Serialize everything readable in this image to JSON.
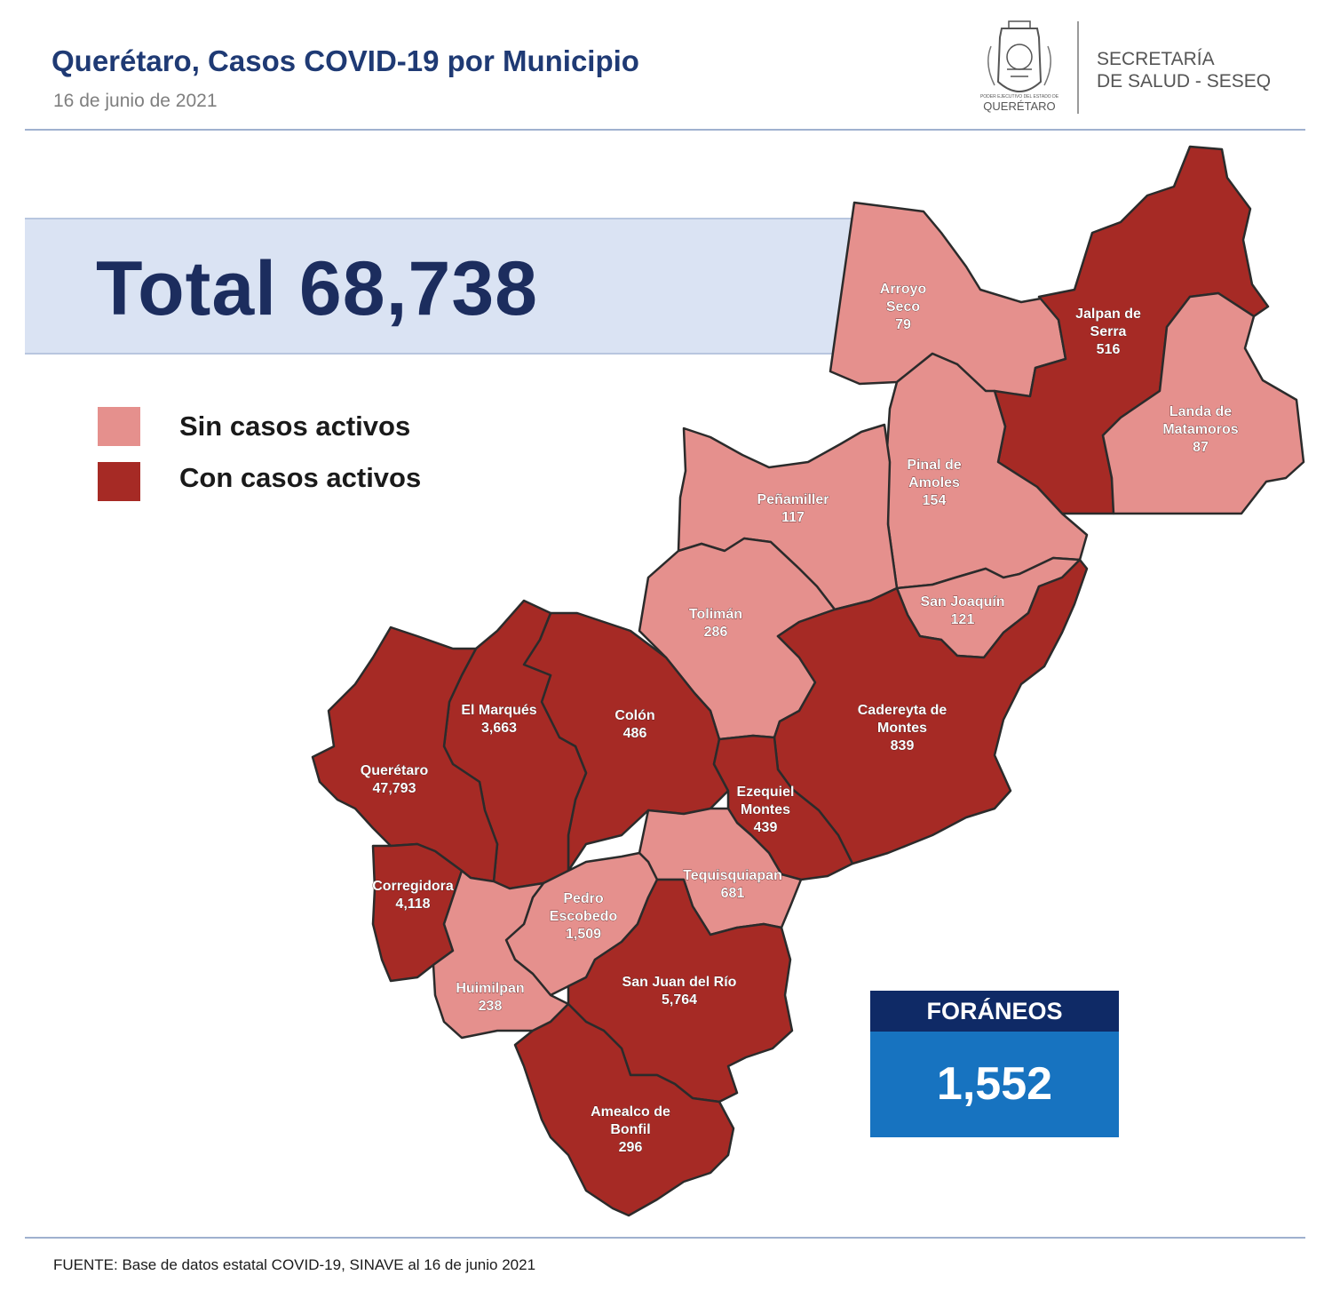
{
  "header": {
    "title": "Querétaro, Casos COVID-19 por Municipio",
    "date": "16 de junio  de 2021",
    "seal_caption": "QUERÉTARO",
    "seal_small": "PODER EJECUTIVO DEL ESTADO DE",
    "secretaria_line1": "SECRETARÍA",
    "secretaria_line2": "DE SALUD - SESEQ"
  },
  "total": "Total 68,738",
  "legend": [
    {
      "label": "Sin casos activos",
      "color": "#e5908d"
    },
    {
      "label": "Con casos activos",
      "color": "#a62a25"
    }
  ],
  "colors": {
    "inactive": "#e5908d",
    "active": "#a62a25",
    "border": "#2b2b2b"
  },
  "municipalities": [
    {
      "name": "Arroyo Seco",
      "lines": [
        "Arroyo",
        "Seco"
      ],
      "cases": "79",
      "active": false
    },
    {
      "name": "Jalpan de Serra",
      "lines": [
        "Jalpan de",
        "Serra"
      ],
      "cases": "516",
      "active": true
    },
    {
      "name": "Landa de Matamoros",
      "lines": [
        "Landa de",
        "Matamoros"
      ],
      "cases": "87",
      "active": false
    },
    {
      "name": "Pinal de Amoles",
      "lines": [
        "Pinal de",
        "Amoles"
      ],
      "cases": "154",
      "active": false
    },
    {
      "name": "Peñamiller",
      "lines": [
        "Peñamiller"
      ],
      "cases": "117",
      "active": false
    },
    {
      "name": "San Joaquín",
      "lines": [
        "San Joaquín"
      ],
      "cases": "121",
      "active": false
    },
    {
      "name": "Tolimán",
      "lines": [
        "Tolimán"
      ],
      "cases": "286",
      "active": false
    },
    {
      "name": "Cadereyta de Montes",
      "lines": [
        "Cadereyta de",
        "Montes"
      ],
      "cases": "839",
      "active": true
    },
    {
      "name": "Colón",
      "lines": [
        "Colón"
      ],
      "cases": "486",
      "active": true
    },
    {
      "name": "El Marqués",
      "lines": [
        "El  Marqués"
      ],
      "cases": "3,663",
      "active": true
    },
    {
      "name": "Querétaro",
      "lines": [
        "Querétaro"
      ],
      "cases": "47,793",
      "active": true
    },
    {
      "name": "Ezequiel Montes",
      "lines": [
        "Ezequiel",
        "Montes"
      ],
      "cases": "439",
      "active": true
    },
    {
      "name": "Tequisquiapan",
      "lines": [
        "Tequisquiapan"
      ],
      "cases": "681",
      "active": false
    },
    {
      "name": "Corregidora",
      "lines": [
        "Corregidora"
      ],
      "cases": "4,118",
      "active": true
    },
    {
      "name": "Pedro Escobedo",
      "lines": [
        "Pedro",
        "Escobedo"
      ],
      "cases": "1,509",
      "active": false
    },
    {
      "name": "Huimilpan",
      "lines": [
        "Huimilpan"
      ],
      "cases": "238",
      "active": false
    },
    {
      "name": "San Juan del Río",
      "lines": [
        "San Juan del Río"
      ],
      "cases": "5,764",
      "active": true
    },
    {
      "name": "Amealco de Bonfil",
      "lines": [
        "Amealco de",
        "Bonfil"
      ],
      "cases": "296",
      "active": true
    }
  ],
  "foraneos": {
    "label": "FORÁNEOS",
    "value": "1,552"
  },
  "footer": "FUENTE:  Base de datos estatal COVID-19,  SINAVE  al 16 de junio  2021"
}
